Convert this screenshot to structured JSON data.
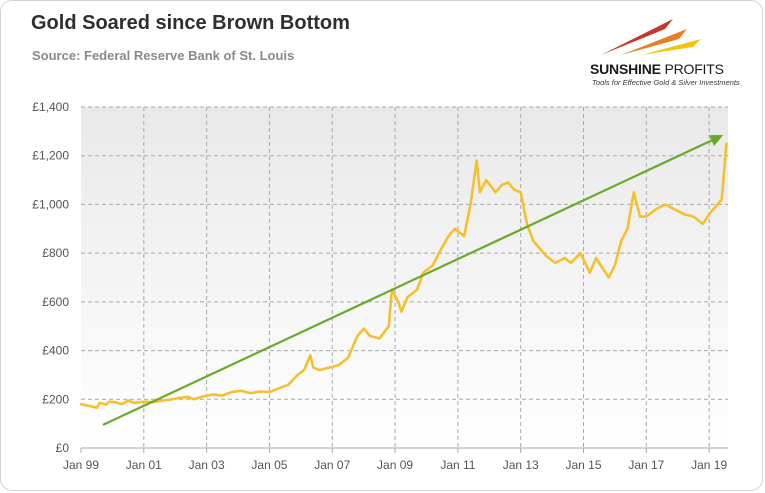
{
  "header": {
    "title": "Gold Soared since Brown Bottom",
    "subtitle": "Source: Federal Reserve Bank of St. Louis"
  },
  "logo": {
    "brand_a": "SUNSHINE",
    "brand_b": "PROFITS",
    "tagline": "Tools for Effective Gold & Silver Investments",
    "colors": [
      "#c0392b",
      "#e67e22",
      "#f1c40f"
    ]
  },
  "colors": {
    "line": "#f5c030",
    "trend": "#6aaa2a",
    "plot_bg_top": "#e9e9e9",
    "plot_bg_bottom": "#ffffff",
    "grid": "#a9a9a9"
  },
  "chart_data": {
    "type": "line",
    "title": "Gold Soared since Brown Bottom",
    "subtitle": "Source: Federal Reserve Bank of St. Louis",
    "xlabel": "",
    "ylabel": "",
    "x_ticks": [
      "Jan 99",
      "Jan 01",
      "Jan 03",
      "Jan 05",
      "Jan 07",
      "Jan 09",
      "Jan 11",
      "Jan 13",
      "Jan 15",
      "Jan 17",
      "Jan 19"
    ],
    "y_ticks": [
      "£0",
      "£200",
      "£400",
      "£600",
      "£800",
      "£1,000",
      "£1,200",
      "£1,400"
    ],
    "ylim": [
      0,
      1400
    ],
    "xlim": [
      1999.0,
      2019.6
    ],
    "grid": true,
    "series": [
      {
        "x": [
          1999.0,
          1999.3,
          1999.5,
          1999.6,
          1999.8,
          1999.9,
          2000.1,
          2000.3,
          2000.5,
          2000.7,
          2001.0,
          2001.3,
          2001.6,
          2001.8,
          2002.1,
          2002.4,
          2002.6,
          2002.9,
          2003.2,
          2003.5,
          2003.8,
          2004.1,
          2004.4,
          2004.7,
          2005.0,
          2005.3,
          2005.6,
          2005.9,
          2006.1,
          2006.3,
          2006.4,
          2006.6,
          2006.9,
          2007.2,
          2007.5,
          2007.8,
          2008.0,
          2008.2,
          2008.5,
          2008.8,
          2008.9,
          2009.1,
          2009.2,
          2009.4,
          2009.7,
          2009.9,
          2010.2,
          2010.4,
          2010.7,
          2010.9,
          2011.2,
          2011.4,
          2011.6,
          2011.7,
          2011.9,
          2012.2,
          2012.4,
          2012.6,
          2012.8,
          2013.0,
          2013.2,
          2013.4,
          2013.6,
          2013.8,
          2014.1,
          2014.4,
          2014.6,
          2014.9,
          2015.2,
          2015.4,
          2015.6,
          2015.8,
          2016.0,
          2016.2,
          2016.4,
          2016.6,
          2016.8,
          2017.0,
          2017.3,
          2017.6,
          2017.9,
          2018.2,
          2018.5,
          2018.8,
          2019.0,
          2019.2,
          2019.4,
          2019.55
        ],
        "values": [
          180,
          172,
          165,
          185,
          178,
          190,
          188,
          180,
          195,
          185,
          190,
          188,
          195,
          198,
          205,
          210,
          200,
          212,
          220,
          215,
          230,
          235,
          225,
          232,
          230,
          245,
          260,
          300,
          320,
          380,
          330,
          320,
          330,
          340,
          370,
          460,
          490,
          460,
          450,
          500,
          650,
          600,
          560,
          620,
          650,
          720,
          750,
          800,
          870,
          900,
          870,
          1000,
          1180,
          1050,
          1100,
          1050,
          1080,
          1090,
          1060,
          1050,
          920,
          850,
          820,
          790,
          760,
          780,
          760,
          800,
          720,
          780,
          740,
          700,
          750,
          850,
          900,
          1050,
          950,
          950,
          980,
          1000,
          980,
          960,
          950,
          920,
          960,
          990,
          1020,
          1250
        ]
      },
      {
        "x": [
          1999.7,
          2019.45
        ],
        "values": [
          95,
          1285
        ]
      }
    ]
  }
}
